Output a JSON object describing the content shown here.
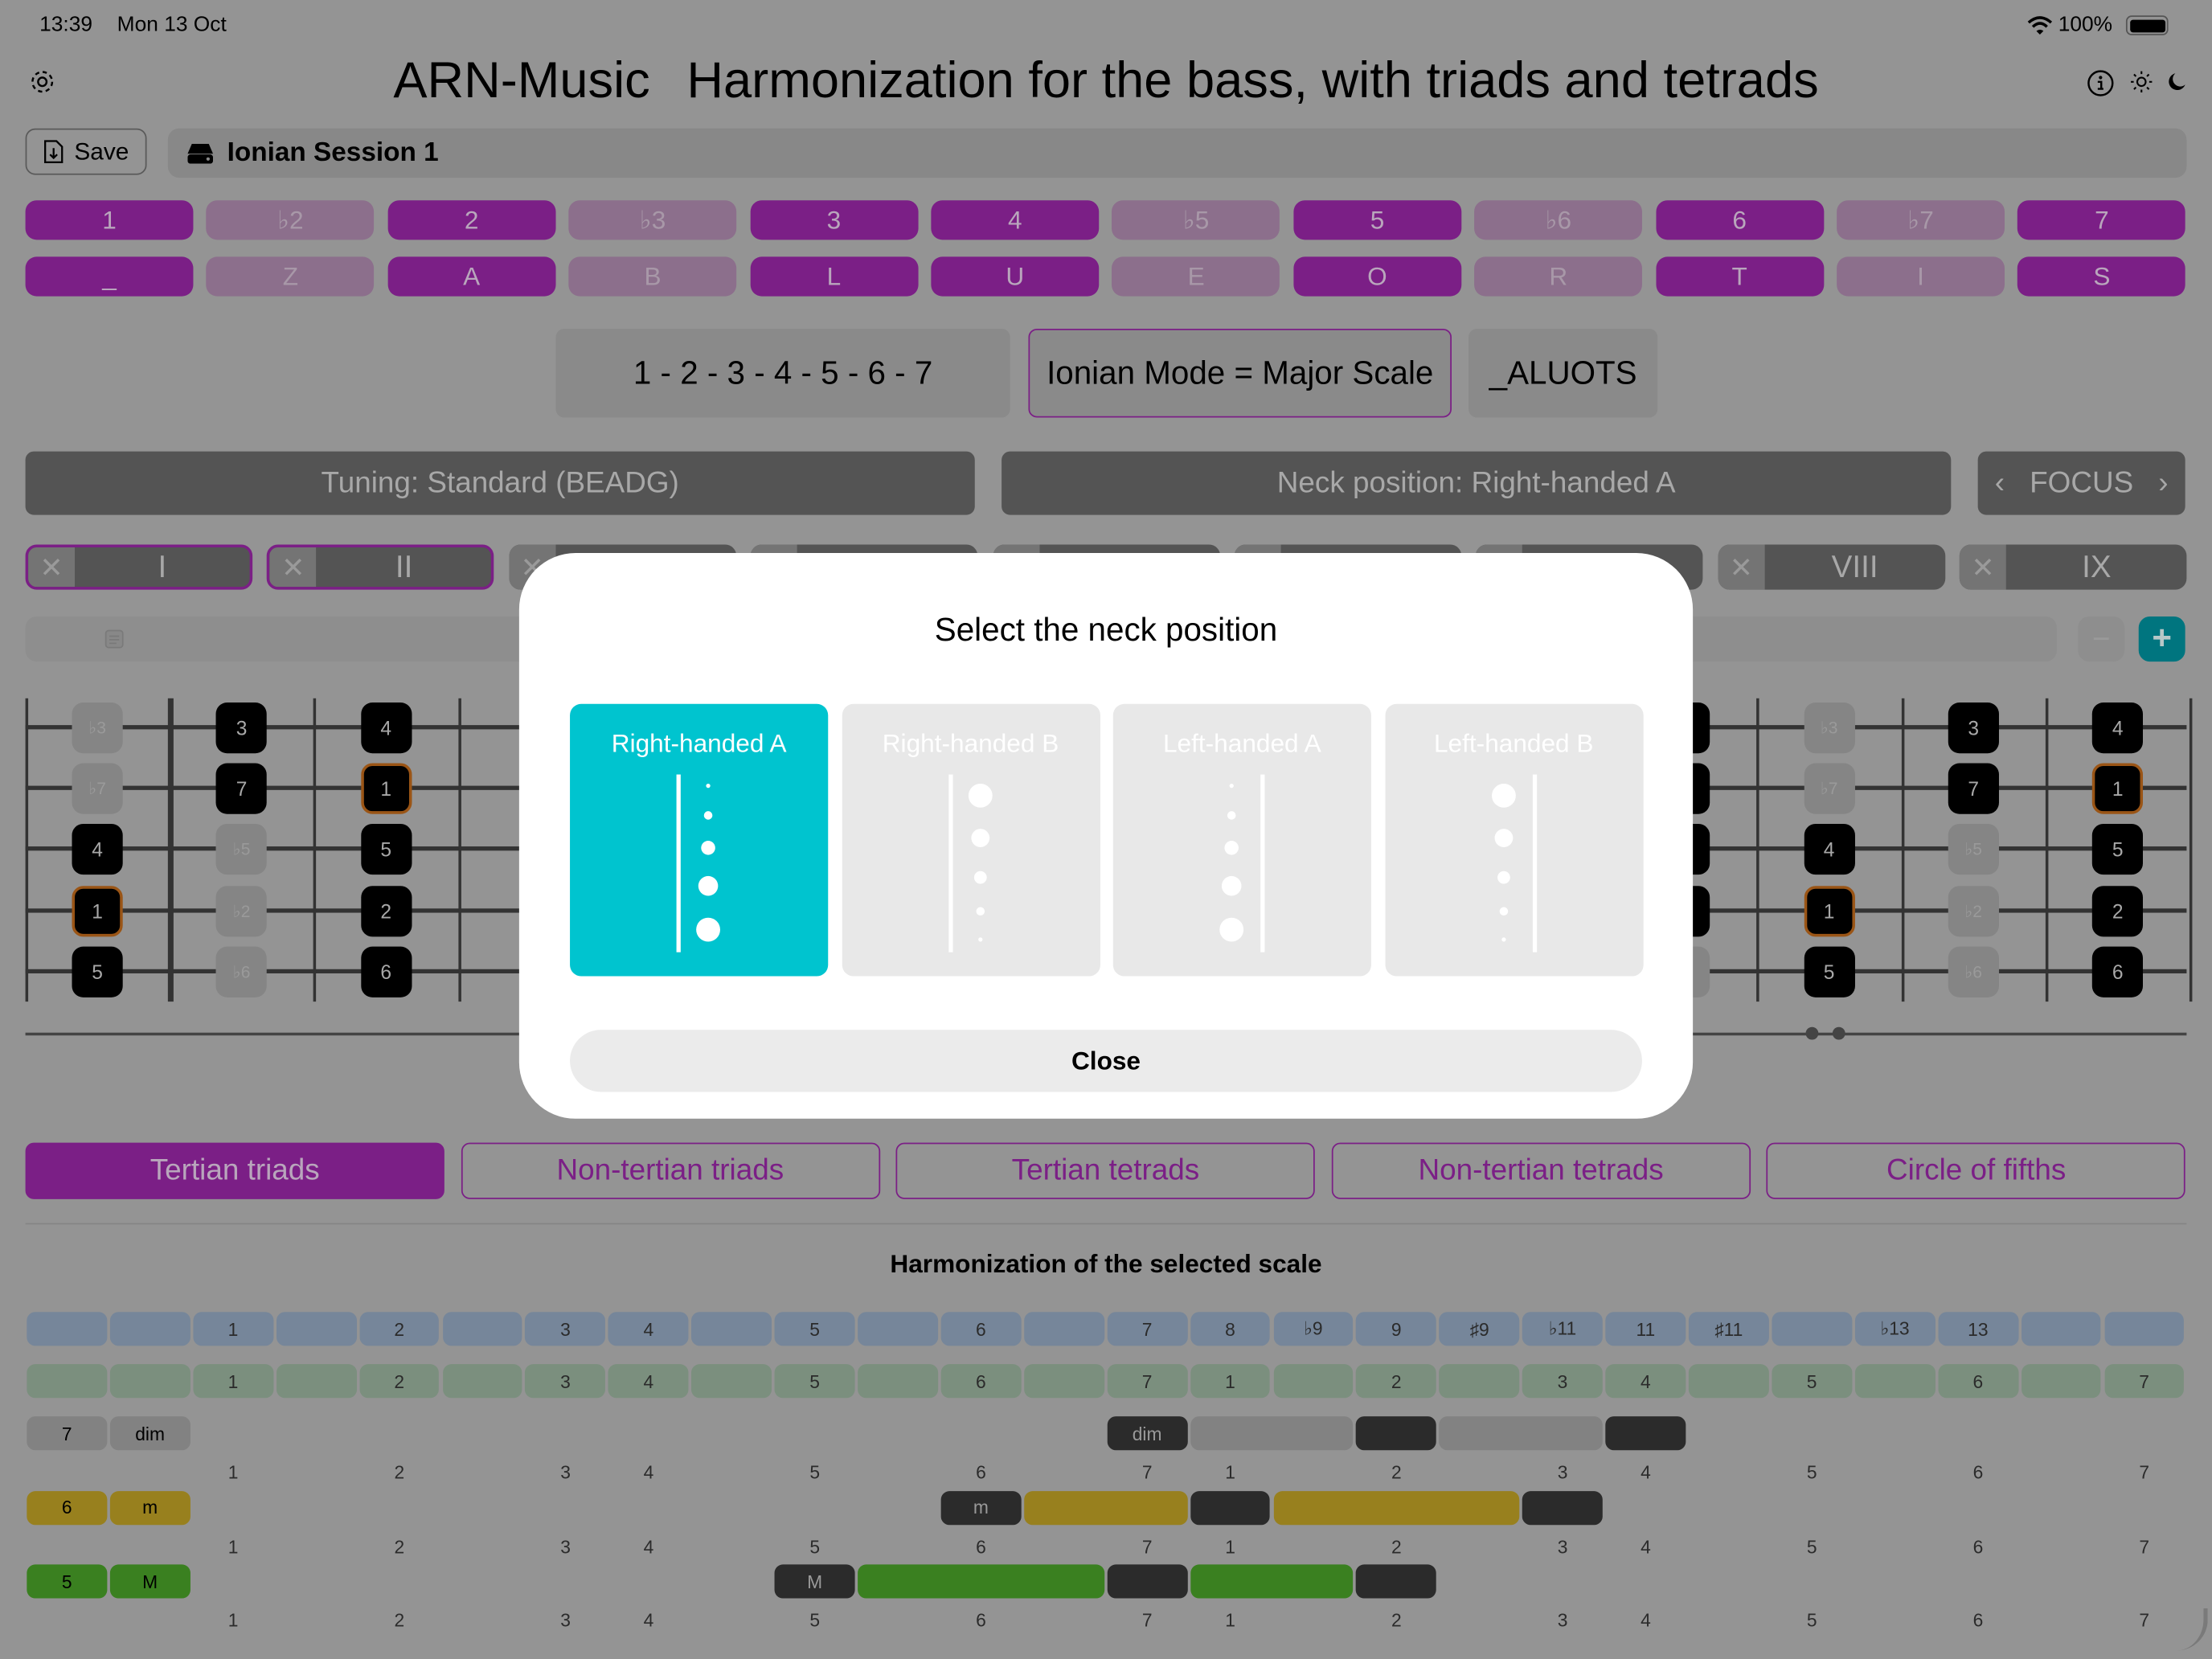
{
  "status_bar": {
    "time": "13:39",
    "date": "Mon 13 Oct",
    "battery": "100%",
    "battery_level": 100
  },
  "header": {
    "app_name": "ARN-Music",
    "title": "Harmonization for the bass, with triads and tetrads"
  },
  "toolbar": {
    "save_label": "Save",
    "session_name": "Ionian Session 1"
  },
  "degree_buttons": [
    {
      "label": "1",
      "active": true
    },
    {
      "label": "♭2",
      "active": false
    },
    {
      "label": "2",
      "active": true
    },
    {
      "label": "♭3",
      "active": false
    },
    {
      "label": "3",
      "active": true
    },
    {
      "label": "4",
      "active": true
    },
    {
      "label": "♭5",
      "active": false
    },
    {
      "label": "5",
      "active": true
    },
    {
      "label": "♭6",
      "active": false
    },
    {
      "label": "6",
      "active": true
    },
    {
      "label": "♭7",
      "active": false
    },
    {
      "label": "7",
      "active": true
    }
  ],
  "letter_buttons": [
    "_",
    "Z",
    "A",
    "B",
    "L",
    "U",
    "E",
    "O",
    "R",
    "T",
    "I",
    "S"
  ],
  "scale": {
    "formula": "1 - 2 - 3 - 4 - 5 - 6 - 7",
    "mode": "Ionian Mode = Major Scale",
    "code": "_ALUOTS"
  },
  "settings": {
    "tuning": "Tuning: Standard (BEADG)",
    "neck_position": "Neck position: Right-handed A",
    "focus": "FOCUS"
  },
  "position_tabs": [
    {
      "label": "I",
      "selected": true
    },
    {
      "label": "II",
      "selected": true
    },
    {
      "label": "",
      "selected": false
    },
    {
      "label": "",
      "selected": false
    },
    {
      "label": "",
      "selected": false
    },
    {
      "label": "",
      "selected": false
    },
    {
      "label": "",
      "selected": false
    },
    {
      "label": "VIII",
      "selected": false
    },
    {
      "label": "IX",
      "selected": false
    }
  ],
  "fretboard": {
    "chromatic_degrees": [
      "1",
      "♭2",
      "2",
      "♭3",
      "3",
      "4",
      "♭5",
      "5",
      "♭6",
      "6",
      "♭7",
      "7"
    ],
    "scale_degrees": [
      "1",
      "2",
      "3",
      "4",
      "5",
      "6",
      "7"
    ],
    "strings_first_fret_degree": [
      "♭3",
      "♭7",
      "4",
      "1",
      "5"
    ],
    "visible_frets": [
      0,
      1,
      2,
      11,
      12,
      13,
      14
    ],
    "page_dots": 2
  },
  "colors": {
    "accent_purple": "#7b1f86",
    "teal": "#00c4cf",
    "plus_button": "#00757f",
    "root_border": "#9a5516",
    "dim": "#828282",
    "minor": "#98801e",
    "major": "#3a8020",
    "chord_tone": "#2b2b2b"
  },
  "modal": {
    "title": "Select the neck position",
    "options": [
      {
        "label": "Right-handed A",
        "selected": true,
        "icon": "neck-right-a-icon"
      },
      {
        "label": "Right-handed B",
        "selected": false,
        "icon": "neck-right-b-icon"
      },
      {
        "label": "Left-handed A",
        "selected": false,
        "icon": "neck-left-a-icon"
      },
      {
        "label": "Left-handed B",
        "selected": false,
        "icon": "neck-left-b-icon"
      }
    ],
    "close_label": "Close"
  },
  "segments": [
    {
      "label": "Tertian triads",
      "selected": true
    },
    {
      "label": "Non-tertian triads",
      "selected": false
    },
    {
      "label": "Tertian tetrads",
      "selected": false
    },
    {
      "label": "Non-tertian tetrads",
      "selected": false
    },
    {
      "label": "Circle of fifths",
      "selected": false
    }
  ],
  "harmonization": {
    "title": "Harmonization of the selected scale",
    "interval_row": [
      "1",
      "",
      "2",
      "",
      "3",
      "4",
      "",
      "5",
      "",
      "6",
      "",
      "7",
      "8",
      "♭9",
      "9",
      "♯9",
      "♭11",
      "11",
      "♯11",
      "",
      "♭13",
      "13",
      "",
      ""
    ],
    "degree_row": [
      "1",
      "",
      "2",
      "",
      "3",
      "4",
      "",
      "5",
      "",
      "6",
      "",
      "7",
      "1",
      "",
      "2",
      "",
      "3",
      "4",
      "",
      "5",
      "",
      "6",
      "",
      "7"
    ],
    "chord_rows": [
      {
        "degree": "7",
        "quality": "dim",
        "color": "#828282",
        "cells": [
          "",
          "",
          "",
          "",
          "",
          "",
          "",
          "",
          "",
          "",
          "",
          "root",
          "fill",
          "fill",
          "tone",
          "fill",
          "fill",
          "tone",
          "",
          "",
          "",
          "",
          "",
          ""
        ]
      },
      {
        "degree": "6",
        "quality": "m",
        "color": "#98801e",
        "cells": [
          "",
          "",
          "",
          "",
          "",
          "",
          "",
          "",
          "",
          "root",
          "fill",
          "fill",
          "tone",
          "fill",
          "fill",
          "fill",
          "tone",
          "",
          "",
          "",
          "",
          "",
          "",
          ""
        ]
      },
      {
        "degree": "5",
        "quality": "M",
        "color": "#3a8020",
        "cells": [
          "",
          "",
          "",
          "",
          "",
          "",
          "",
          "root",
          "fill",
          "fill",
          "fill",
          "tone",
          "fill",
          "fill",
          "tone",
          "",
          "",
          "",
          "",
          "",
          "",
          "",
          "",
          ""
        ]
      }
    ]
  }
}
